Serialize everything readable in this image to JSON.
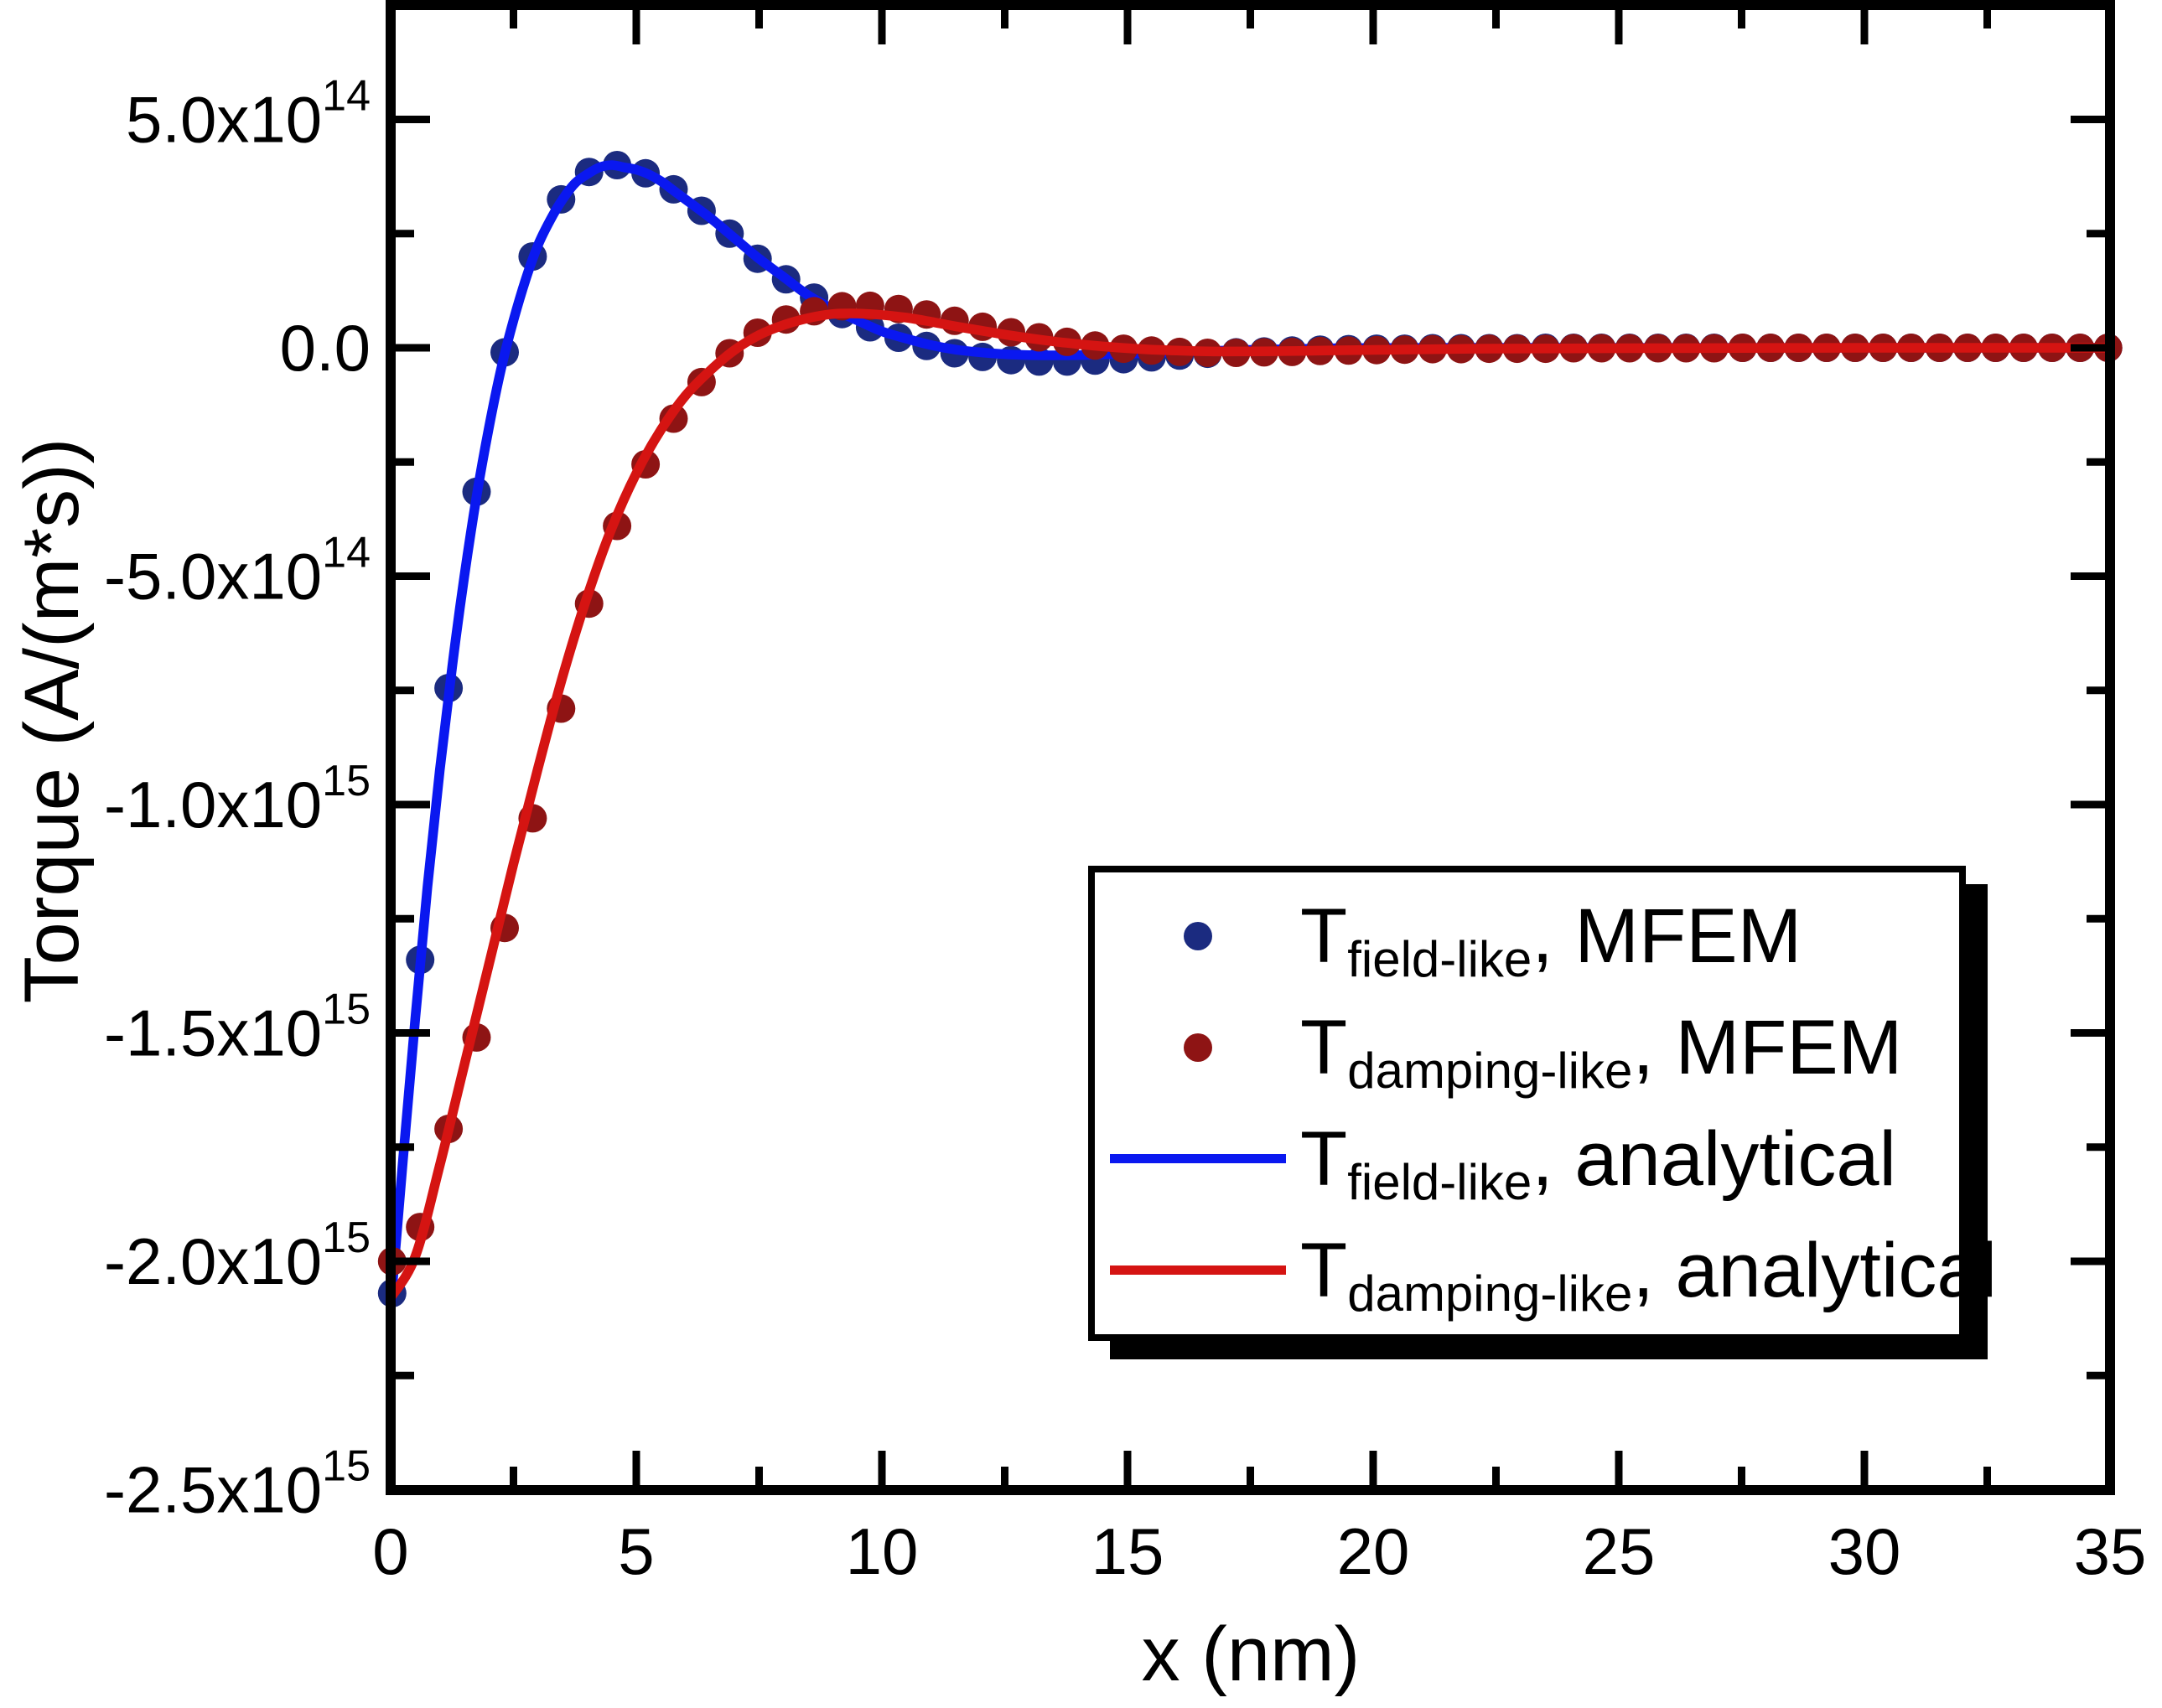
{
  "figure": {
    "background": "#ffffff"
  },
  "axes": {
    "xlabel": "x (nm)",
    "ylabel": "Torque (A/(m*s))"
  },
  "legend": {
    "items": [
      {
        "marker": "dot",
        "color": "#1b2b80",
        "t": "T",
        "sub": "field-like",
        "rest": ", MFEM"
      },
      {
        "marker": "dot",
        "color": "#8e1414",
        "t": "T",
        "sub": "damping-like",
        "rest": ", MFEM"
      },
      {
        "marker": "line",
        "color": "#0a18f0",
        "t": "T",
        "sub": "field-like",
        "rest": ", analytical"
      },
      {
        "marker": "line",
        "color": "#d51412",
        "t": "T",
        "sub": "damping-like",
        "rest": ", analytical"
      }
    ]
  },
  "chart_data": {
    "type": "scatter",
    "title": "",
    "xlabel": "x (nm)",
    "ylabel": "Torque (A/(m*s))",
    "grid": false,
    "legend_position": "inside center-right",
    "xlim": [
      0,
      35
    ],
    "y_value_scale": 100000000000000.0,
    "ylim_scaled": [
      -25,
      7.5
    ],
    "x_major_ticks": [
      0,
      5,
      10,
      15,
      20,
      25,
      30,
      35
    ],
    "x_minor_ticks": [
      2.5,
      7.5,
      12.5,
      17.5,
      22.5,
      27.5,
      32.5
    ],
    "y_major_ticks": [
      {
        "value": 5,
        "label": "5.0x10^14"
      },
      {
        "value": 0,
        "label": "0.0"
      },
      {
        "value": -5,
        "label": "-5.0x10^14"
      },
      {
        "value": -10,
        "label": "-1.0x10^15"
      },
      {
        "value": -15,
        "label": "-1.5x10^15"
      },
      {
        "value": -20,
        "label": "-2.0x10^15"
      },
      {
        "value": -25,
        "label": "-2.5x10^15"
      }
    ],
    "y_minor_ticks": [
      2.5,
      -2.5,
      -7.5,
      -12.5,
      -17.5,
      -22.5
    ],
    "series": [
      {
        "name": "T_field-like_MFEM",
        "label": "T field-like, MFEM",
        "type": "scatter",
        "color": "#1b2b80",
        "marker_radius": 17,
        "points": [
          [
            0.03,
            -20.7
          ],
          [
            0.6,
            -13.4
          ],
          [
            1.18,
            -7.45
          ],
          [
            1.75,
            -3.15
          ],
          [
            2.32,
            -0.1
          ],
          [
            2.89,
            2.0
          ],
          [
            3.47,
            3.25
          ],
          [
            4.04,
            3.85
          ],
          [
            4.61,
            4.0
          ],
          [
            5.19,
            3.82
          ],
          [
            5.76,
            3.47
          ],
          [
            6.33,
            3.0
          ],
          [
            6.9,
            2.5
          ],
          [
            7.47,
            1.95
          ],
          [
            8.05,
            1.5
          ],
          [
            8.62,
            1.1
          ],
          [
            9.19,
            0.74
          ],
          [
            9.76,
            0.45
          ],
          [
            10.34,
            0.22
          ],
          [
            10.91,
            0.04
          ],
          [
            11.48,
            -0.12
          ],
          [
            12.05,
            -0.2
          ],
          [
            12.63,
            -0.27
          ],
          [
            13.2,
            -0.3
          ],
          [
            13.77,
            -0.3
          ],
          [
            14.34,
            -0.28
          ],
          [
            14.92,
            -0.25
          ],
          [
            15.49,
            -0.21
          ],
          [
            16.06,
            -0.17
          ],
          [
            16.63,
            -0.13
          ],
          [
            17.21,
            -0.1
          ],
          [
            17.78,
            -0.08
          ],
          [
            18.35,
            -0.06
          ],
          [
            18.92,
            -0.04
          ],
          [
            19.5,
            -0.03
          ],
          [
            20.07,
            -0.02
          ],
          [
            20.64,
            -0.02
          ],
          [
            21.21,
            -0.01
          ],
          [
            21.79,
            -0.01
          ],
          [
            22.36,
            -0.01
          ],
          [
            22.93,
            -0.01
          ],
          [
            23.51,
            0
          ],
          [
            24.08,
            0
          ],
          [
            24.65,
            0
          ],
          [
            25.22,
            0
          ],
          [
            25.8,
            0
          ],
          [
            26.37,
            0
          ],
          [
            26.94,
            0
          ],
          [
            27.52,
            0
          ],
          [
            28.09,
            0
          ],
          [
            28.66,
            0
          ],
          [
            29.23,
            0
          ],
          [
            29.81,
            0
          ],
          [
            30.38,
            0
          ],
          [
            30.95,
            0
          ],
          [
            31.53,
            0
          ],
          [
            32.1,
            0
          ],
          [
            32.67,
            0
          ],
          [
            33.24,
            0
          ],
          [
            33.82,
            0
          ],
          [
            34.39,
            0
          ],
          [
            34.96,
            0
          ]
        ]
      },
      {
        "name": "T_damping-like_MFEM",
        "label": "T damping-like, MFEM",
        "type": "scatter",
        "color": "#8e1414",
        "marker_radius": 17,
        "points": [
          [
            0.03,
            -20.0
          ],
          [
            0.6,
            -19.25
          ],
          [
            1.18,
            -17.1
          ],
          [
            1.75,
            -15.1
          ],
          [
            2.32,
            -12.7
          ],
          [
            2.89,
            -10.3
          ],
          [
            3.47,
            -7.9
          ],
          [
            4.04,
            -5.6
          ],
          [
            4.61,
            -3.9
          ],
          [
            5.19,
            -2.55
          ],
          [
            5.76,
            -1.55
          ],
          [
            6.33,
            -0.75
          ],
          [
            6.9,
            -0.12
          ],
          [
            7.47,
            0.33
          ],
          [
            8.05,
            0.62
          ],
          [
            8.62,
            0.8
          ],
          [
            9.19,
            0.91
          ],
          [
            9.76,
            0.92
          ],
          [
            10.34,
            0.85
          ],
          [
            10.91,
            0.73
          ],
          [
            11.48,
            0.59
          ],
          [
            12.05,
            0.46
          ],
          [
            12.63,
            0.34
          ],
          [
            13.2,
            0.23
          ],
          [
            13.77,
            0.13
          ],
          [
            14.34,
            0.05
          ],
          [
            14.92,
            -0.02
          ],
          [
            15.49,
            -0.06
          ],
          [
            16.06,
            -0.09
          ],
          [
            16.63,
            -0.11
          ],
          [
            17.21,
            -0.11
          ],
          [
            17.78,
            -0.1
          ],
          [
            18.35,
            -0.09
          ],
          [
            18.92,
            -0.07
          ],
          [
            19.5,
            -0.06
          ],
          [
            20.07,
            -0.05
          ],
          [
            20.64,
            -0.04
          ],
          [
            21.21,
            -0.03
          ],
          [
            21.79,
            -0.03
          ],
          [
            22.36,
            -0.02
          ],
          [
            22.93,
            -0.02
          ],
          [
            23.51,
            -0.02
          ],
          [
            24.08,
            -0.01
          ],
          [
            24.65,
            -0.01
          ],
          [
            25.22,
            -0.01
          ],
          [
            25.8,
            -0.01
          ],
          [
            26.37,
            -0.01
          ],
          [
            26.94,
            -0.01
          ],
          [
            27.52,
            0
          ],
          [
            28.09,
            0
          ],
          [
            28.66,
            0
          ],
          [
            29.23,
            0
          ],
          [
            29.81,
            0
          ],
          [
            30.38,
            0
          ],
          [
            30.95,
            0
          ],
          [
            31.53,
            0
          ],
          [
            32.1,
            0
          ],
          [
            32.67,
            0
          ],
          [
            33.24,
            0
          ],
          [
            33.82,
            0
          ],
          [
            34.39,
            0
          ],
          [
            34.96,
            0
          ]
        ]
      },
      {
        "name": "T_field-like_analytical",
        "label": "T field-like, analytical",
        "type": "line",
        "color": "#0a18f0",
        "line_width": 11.5,
        "points": [
          [
            0,
            -21.0
          ],
          [
            0.25,
            -17.8
          ],
          [
            0.5,
            -14.7
          ],
          [
            0.75,
            -11.8
          ],
          [
            1,
            -9.25
          ],
          [
            1.25,
            -7.0
          ],
          [
            1.5,
            -5.0
          ],
          [
            1.75,
            -3.25
          ],
          [
            2,
            -1.75
          ],
          [
            2.25,
            -0.45
          ],
          [
            2.5,
            0.6
          ],
          [
            2.75,
            1.5
          ],
          [
            3,
            2.25
          ],
          [
            3.25,
            2.8
          ],
          [
            3.5,
            3.25
          ],
          [
            3.75,
            3.6
          ],
          [
            4,
            3.8
          ],
          [
            4.25,
            3.95
          ],
          [
            4.5,
            4.0
          ],
          [
            4.75,
            3.95
          ],
          [
            5,
            3.9
          ],
          [
            5.25,
            3.8
          ],
          [
            5.5,
            3.65
          ],
          [
            5.75,
            3.45
          ],
          [
            6,
            3.25
          ],
          [
            6.5,
            2.85
          ],
          [
            7,
            2.4
          ],
          [
            7.5,
            1.95
          ],
          [
            8,
            1.55
          ],
          [
            8.5,
            1.15
          ],
          [
            9,
            0.85
          ],
          [
            9.5,
            0.6
          ],
          [
            10,
            0.36
          ],
          [
            10.5,
            0.2
          ],
          [
            11,
            0.06
          ],
          [
            11.5,
            -0.04
          ],
          [
            12,
            -0.1
          ],
          [
            12.5,
            -0.14
          ],
          [
            13,
            -0.16
          ],
          [
            13.5,
            -0.165
          ],
          [
            14,
            -0.16
          ],
          [
            14.5,
            -0.145
          ],
          [
            15,
            -0.13
          ],
          [
            16,
            -0.095
          ],
          [
            17,
            -0.06
          ],
          [
            18,
            -0.035
          ],
          [
            19,
            -0.015
          ],
          [
            20,
            -0.005
          ],
          [
            22,
            0
          ],
          [
            25,
            0
          ],
          [
            30,
            0
          ],
          [
            35,
            0
          ]
        ]
      },
      {
        "name": "T_damping-like_analytical",
        "label": "T damping-like, analytical",
        "type": "line",
        "color": "#d51412",
        "line_width": 11.5,
        "points": [
          [
            0,
            -20.8
          ],
          [
            0.5,
            -19.9
          ],
          [
            1,
            -17.9
          ],
          [
            1.5,
            -15.7
          ],
          [
            2,
            -13.5
          ],
          [
            2.5,
            -11.3
          ],
          [
            3,
            -9.2
          ],
          [
            3.5,
            -7.2
          ],
          [
            4,
            -5.45
          ],
          [
            4.5,
            -3.95
          ],
          [
            5,
            -2.75
          ],
          [
            5.5,
            -1.8
          ],
          [
            6,
            -1.05
          ],
          [
            6.5,
            -0.5
          ],
          [
            7,
            -0.05
          ],
          [
            7.5,
            0.28
          ],
          [
            8,
            0.5
          ],
          [
            8.5,
            0.65
          ],
          [
            9,
            0.74
          ],
          [
            9.5,
            0.75
          ],
          [
            10,
            0.72
          ],
          [
            10.5,
            0.66
          ],
          [
            11,
            0.57
          ],
          [
            11.5,
            0.47
          ],
          [
            12,
            0.38
          ],
          [
            12.5,
            0.29
          ],
          [
            13,
            0.21
          ],
          [
            13.5,
            0.14
          ],
          [
            14,
            0.08
          ],
          [
            14.5,
            0.03
          ],
          [
            15,
            -0.01
          ],
          [
            15.5,
            -0.04
          ],
          [
            16,
            -0.06
          ],
          [
            16.5,
            -0.075
          ],
          [
            17,
            -0.08
          ],
          [
            18,
            -0.075
          ],
          [
            19,
            -0.06
          ],
          [
            20,
            -0.045
          ],
          [
            22,
            -0.02
          ],
          [
            25,
            -0.01
          ],
          [
            30,
            0
          ],
          [
            35,
            0
          ]
        ]
      }
    ]
  }
}
